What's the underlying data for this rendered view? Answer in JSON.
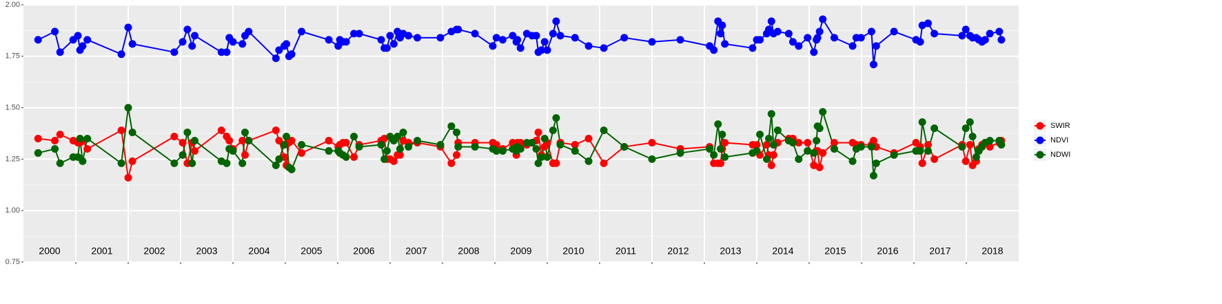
{
  "chart_data": {
    "type": "line",
    "x": [
      2000.28,
      2000.6,
      2000.7,
      2000.95,
      2001.04,
      2001.08,
      2001.13,
      2001.22,
      2001.87,
      2002.0,
      2002.08,
      2002.88,
      2003.04,
      2003.13,
      2003.22,
      2003.27,
      2003.78,
      2003.88,
      2003.93,
      2004.0,
      2004.18,
      2004.23,
      2004.3,
      2004.82,
      2004.88,
      2004.98,
      2005.02,
      2005.07,
      2005.12,
      2005.31,
      2005.83,
      2006.01,
      2006.04,
      2006.1,
      2006.16,
      2006.31,
      2006.41,
      2006.83,
      2006.89,
      2006.94,
      2007.0,
      2007.07,
      2007.14,
      2007.19,
      2007.25,
      2007.35,
      2007.52,
      2007.96,
      2008.17,
      2008.27,
      2008.3,
      2008.62,
      2008.96,
      2009.03,
      2009.15,
      2009.34,
      2009.41,
      2009.43,
      2009.49,
      2009.61,
      2009.71,
      2009.79,
      2009.83,
      2009.89,
      2009.95,
      2010.0,
      2010.11,
      2010.17,
      2010.25,
      2010.53,
      2010.79,
      2011.08,
      2011.47,
      2012.0,
      2012.54,
      2013.1,
      2013.18,
      2013.26,
      2013.31,
      2013.34,
      2013.39,
      2013.92,
      2014.0,
      2014.06,
      2014.19,
      2014.23,
      2014.28,
      2014.32,
      2014.4,
      2014.61,
      2014.69,
      2014.8,
      2014.97,
      2015.09,
      2015.14,
      2015.16,
      2015.2,
      2015.26,
      2015.48,
      2015.83,
      2015.9,
      2015.99,
      2016.19,
      2016.23,
      2016.28,
      2016.62,
      2017.04,
      2017.12,
      2017.16,
      2017.27,
      2017.39,
      2017.92,
      2017.99,
      2018.07,
      2018.12,
      2018.19,
      2018.24,
      2018.3,
      2018.36,
      2018.45,
      2018.63,
      2018.67
    ],
    "series": [
      {
        "name": "SWIR",
        "color": "#ff0000",
        "values": [
          1.35,
          1.34,
          1.37,
          1.34,
          1.33,
          1.33,
          1.34,
          1.3,
          1.39,
          1.16,
          1.24,
          1.36,
          1.33,
          1.23,
          1.33,
          1.29,
          1.39,
          1.36,
          1.34,
          1.3,
          1.34,
          1.27,
          1.34,
          1.39,
          1.34,
          1.26,
          1.22,
          1.33,
          1.34,
          1.28,
          1.34,
          1.31,
          1.32,
          1.33,
          1.33,
          1.26,
          1.32,
          1.34,
          1.35,
          1.25,
          1.25,
          1.24,
          1.27,
          1.27,
          1.34,
          1.33,
          1.33,
          1.31,
          1.23,
          1.27,
          1.33,
          1.33,
          1.33,
          1.32,
          1.3,
          1.33,
          1.27,
          1.33,
          1.33,
          1.32,
          1.33,
          1.34,
          1.38,
          1.27,
          1.31,
          1.33,
          1.23,
          1.23,
          1.33,
          1.32,
          1.35,
          1.23,
          1.31,
          1.33,
          1.3,
          1.31,
          1.23,
          1.23,
          1.23,
          1.3,
          1.33,
          1.32,
          1.32,
          1.27,
          1.32,
          1.27,
          1.22,
          1.27,
          1.33,
          1.35,
          1.35,
          1.33,
          1.33,
          1.22,
          1.29,
          1.29,
          1.21,
          1.28,
          1.33,
          1.33,
          1.32,
          1.32,
          1.32,
          1.34,
          1.31,
          1.28,
          1.33,
          1.31,
          1.23,
          1.32,
          1.25,
          1.32,
          1.24,
          1.32,
          1.22,
          1.24,
          1.3,
          1.32,
          1.33,
          1.31,
          1.33,
          1.34
        ]
      },
      {
        "name": "NDVI",
        "color": "#0000ff",
        "values": [
          1.83,
          1.87,
          1.77,
          1.83,
          1.85,
          1.78,
          1.8,
          1.83,
          1.76,
          1.89,
          1.81,
          1.77,
          1.82,
          1.88,
          1.8,
          1.85,
          1.77,
          1.77,
          1.84,
          1.82,
          1.81,
          1.85,
          1.87,
          1.74,
          1.78,
          1.8,
          1.81,
          1.75,
          1.76,
          1.87,
          1.83,
          1.8,
          1.83,
          1.82,
          1.82,
          1.86,
          1.86,
          1.83,
          1.79,
          1.79,
          1.85,
          1.81,
          1.87,
          1.84,
          1.86,
          1.85,
          1.84,
          1.84,
          1.87,
          1.88,
          1.88,
          1.86,
          1.8,
          1.84,
          1.83,
          1.85,
          1.82,
          1.83,
          1.79,
          1.86,
          1.85,
          1.85,
          1.77,
          1.78,
          1.82,
          1.78,
          1.86,
          1.92,
          1.85,
          1.84,
          1.8,
          1.79,
          1.84,
          1.82,
          1.83,
          1.8,
          1.78,
          1.92,
          1.86,
          1.9,
          1.81,
          1.79,
          1.83,
          1.83,
          1.86,
          1.88,
          1.92,
          1.86,
          1.87,
          1.86,
          1.82,
          1.8,
          1.84,
          1.77,
          1.83,
          1.84,
          1.87,
          1.93,
          1.84,
          1.8,
          1.84,
          1.84,
          1.87,
          1.71,
          1.8,
          1.87,
          1.83,
          1.82,
          1.9,
          1.91,
          1.86,
          1.85,
          1.88,
          1.85,
          1.84,
          1.84,
          1.83,
          1.82,
          1.83,
          1.86,
          1.87,
          1.83
        ]
      },
      {
        "name": "NDWI",
        "color": "#006400",
        "values": [
          1.28,
          1.3,
          1.23,
          1.26,
          1.26,
          1.35,
          1.24,
          1.35,
          1.23,
          1.5,
          1.38,
          1.23,
          1.27,
          1.38,
          1.23,
          1.34,
          1.24,
          1.23,
          1.3,
          1.29,
          1.23,
          1.38,
          1.34,
          1.22,
          1.25,
          1.32,
          1.36,
          1.21,
          1.2,
          1.32,
          1.29,
          1.29,
          1.28,
          1.27,
          1.26,
          1.36,
          1.31,
          1.32,
          1.25,
          1.29,
          1.36,
          1.34,
          1.36,
          1.3,
          1.38,
          1.31,
          1.34,
          1.32,
          1.41,
          1.38,
          1.31,
          1.31,
          1.3,
          1.29,
          1.29,
          1.3,
          1.29,
          1.31,
          1.3,
          1.33,
          1.33,
          1.3,
          1.23,
          1.26,
          1.35,
          1.26,
          1.39,
          1.45,
          1.32,
          1.29,
          1.24,
          1.39,
          1.31,
          1.25,
          1.28,
          1.3,
          1.27,
          1.42,
          1.3,
          1.37,
          1.26,
          1.28,
          1.29,
          1.37,
          1.25,
          1.35,
          1.47,
          1.32,
          1.39,
          1.34,
          1.33,
          1.25,
          1.29,
          1.28,
          1.34,
          1.41,
          1.4,
          1.48,
          1.3,
          1.24,
          1.3,
          1.31,
          1.31,
          1.17,
          1.23,
          1.27,
          1.29,
          1.29,
          1.43,
          1.29,
          1.4,
          1.31,
          1.4,
          1.43,
          1.36,
          1.26,
          1.29,
          1.31,
          1.33,
          1.34,
          1.34,
          1.32
        ]
      }
    ],
    "xlim": [
      2000,
      2019
    ],
    "xgrid": [
      2001,
      2002,
      2003,
      2004,
      2005,
      2006,
      2007,
      2008,
      2009,
      2010,
      2011,
      2012,
      2013,
      2014,
      2015,
      2016,
      2017,
      2018
    ],
    "year_labels": [
      {
        "value": 2000,
        "label": "2000"
      },
      {
        "value": 2001,
        "label": "2001"
      },
      {
        "value": 2002,
        "label": "2002"
      },
      {
        "value": 2003,
        "label": "2003"
      },
      {
        "value": 2004,
        "label": "2004"
      },
      {
        "value": 2005,
        "label": "2005"
      },
      {
        "value": 2006,
        "label": "2006"
      },
      {
        "value": 2007,
        "label": "2007"
      },
      {
        "value": 2008,
        "label": "2008"
      },
      {
        "value": 2009,
        "label": "2009"
      },
      {
        "value": 2010,
        "label": "2010"
      },
      {
        "value": 2011,
        "label": "2011"
      },
      {
        "value": 2012,
        "label": "2012"
      },
      {
        "value": 2013,
        "label": "2013"
      },
      {
        "value": 2014,
        "label": "2014"
      },
      {
        "value": 2015,
        "label": "2015"
      },
      {
        "value": 2016,
        "label": "2016"
      },
      {
        "value": 2017,
        "label": "2017"
      },
      {
        "value": 2018,
        "label": "2018"
      }
    ],
    "ylim": [
      0.75,
      2.0
    ],
    "yticks": [
      {
        "value": 0.75,
        "label": "0.75"
      },
      {
        "value": 1,
        "label": "1.00"
      },
      {
        "value": 1.25,
        "label": "1.25"
      },
      {
        "value": 1.5,
        "label": "1.50"
      },
      {
        "value": 1.75,
        "label": "1.75"
      },
      {
        "value": 2,
        "label": "2.00"
      }
    ],
    "grid": true,
    "legend_position": "right"
  }
}
